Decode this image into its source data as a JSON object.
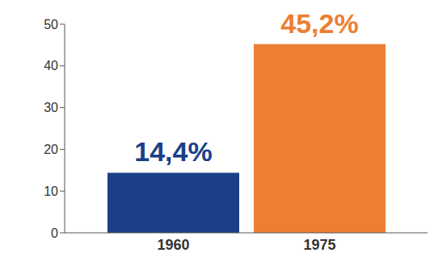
{
  "chart_data": {
    "type": "bar",
    "categories": [
      "1960",
      "1975"
    ],
    "values": [
      14.4,
      45.2
    ],
    "value_labels": [
      "14,4%",
      "45,2%"
    ],
    "colors": [
      "#1b3f87",
      "#ec7f32"
    ],
    "ylim": [
      0,
      50
    ],
    "yticks": [
      0,
      10,
      20,
      30,
      40,
      50
    ],
    "grid": false,
    "data_labels": true
  }
}
